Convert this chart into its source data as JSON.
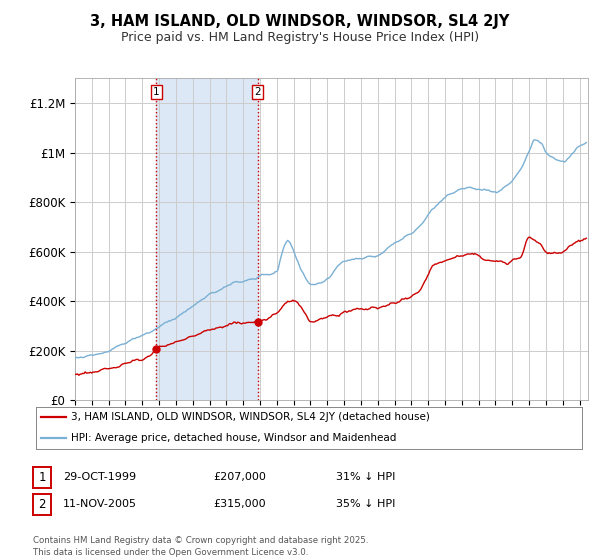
{
  "title": "3, HAM ISLAND, OLD WINDSOR, WINDSOR, SL4 2JY",
  "subtitle": "Price paid vs. HM Land Registry's House Price Index (HPI)",
  "ylabel_ticks": [
    "£0",
    "£200K",
    "£400K",
    "£600K",
    "£800K",
    "£1M",
    "£1.2M"
  ],
  "ytick_values": [
    0,
    200000,
    400000,
    600000,
    800000,
    1000000,
    1200000
  ],
  "ylim": [
    0,
    1300000
  ],
  "xlim_start": 1995.0,
  "xlim_end": 2025.5,
  "shade_color": "#dce8f5",
  "grid_color": "#cccccc",
  "red_color": "#cc0000",
  "blue_color": "#7ab0d4",
  "marker1_date": 1999.83,
  "marker1_value": 207000,
  "marker2_date": 2005.87,
  "marker2_value": 315000,
  "vline1_x": 1999.83,
  "vline2_x": 2005.87,
  "shade_start": 1999.83,
  "shade_end": 2005.87,
  "legend_red": "3, HAM ISLAND, OLD WINDSOR, WINDSOR, SL4 2JY (detached house)",
  "legend_blue": "HPI: Average price, detached house, Windsor and Maidenhead",
  "table_row1": [
    "1",
    "29-OCT-1999",
    "£207,000",
    "31% ↓ HPI"
  ],
  "table_row2": [
    "2",
    "11-NOV-2005",
    "£315,000",
    "35% ↓ HPI"
  ],
  "footnote": "Contains HM Land Registry data © Crown copyright and database right 2025.\nThis data is licensed under the Open Government Licence v3.0."
}
